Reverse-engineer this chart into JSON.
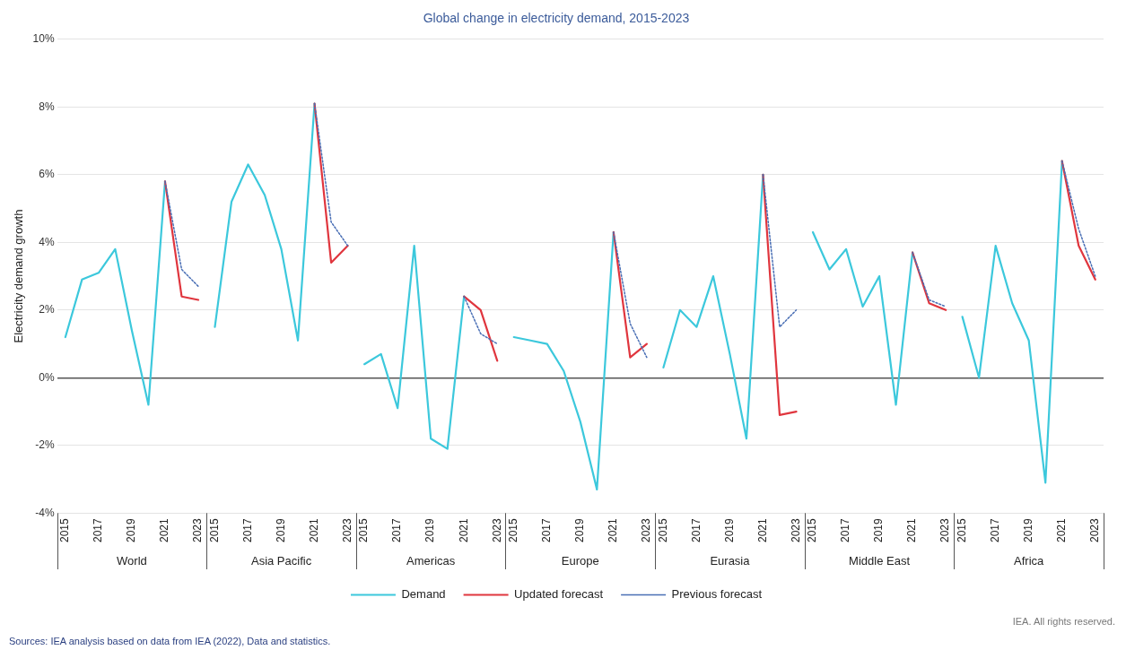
{
  "chart_data": {
    "type": "line",
    "title": "Global change in electricity demand, 2015-2023",
    "ylabel": "Electricity demand growth",
    "categories": [
      "2015",
      null,
      "2017",
      null,
      "2019",
      null,
      "2021",
      null,
      "2023",
      "2015",
      null,
      "2017",
      null,
      "2019",
      null,
      "2021",
      null,
      "2023",
      "2015",
      null,
      "2017",
      null,
      "2019",
      null,
      "2021",
      null,
      "2023",
      "2015",
      null,
      "2017",
      null,
      "2019",
      null,
      "2021",
      null,
      "2023",
      "2015",
      null,
      "2017",
      null,
      "2019",
      null,
      "2021",
      null,
      "2023",
      "2015",
      null,
      "2017",
      null,
      "2019",
      null,
      "2021",
      null,
      "2023",
      "2015",
      null,
      "2017",
      null,
      "2019",
      null,
      "2021",
      null,
      "2023"
    ],
    "series": [
      {
        "name": "Demand",
        "color": "#3cc8dc",
        "values": [
          1.2,
          2.9,
          3.1,
          3.8,
          1.4,
          -0.8,
          5.8,
          null,
          null,
          1.5,
          5.2,
          6.3,
          5.4,
          3.8,
          1.1,
          8.1,
          null,
          null,
          0.4,
          0.7,
          -0.9,
          3.9,
          -1.8,
          -2.1,
          2.4,
          null,
          null,
          1.2,
          1.1,
          1.0,
          0.2,
          -1.3,
          -3.3,
          4.3,
          null,
          null,
          0.3,
          2.0,
          1.5,
          3.0,
          0.7,
          -1.8,
          6.0,
          null,
          null,
          4.3,
          3.2,
          3.8,
          2.1,
          3.0,
          -0.8,
          3.7,
          null,
          null,
          1.8,
          0.0,
          3.9,
          2.2,
          1.1,
          -3.1,
          6.4,
          null,
          null
        ]
      },
      {
        "name": "Updated forecast",
        "color": "#e0363e",
        "values": [
          null,
          null,
          null,
          null,
          null,
          null,
          5.8,
          2.4,
          2.3,
          null,
          null,
          null,
          null,
          null,
          null,
          8.1,
          3.4,
          3.9,
          null,
          null,
          null,
          null,
          null,
          null,
          2.4,
          2.0,
          0.5,
          null,
          null,
          null,
          null,
          null,
          null,
          4.3,
          0.6,
          1.0,
          null,
          null,
          null,
          null,
          null,
          null,
          6.0,
          -1.1,
          -1.0,
          null,
          null,
          null,
          null,
          null,
          null,
          3.7,
          2.2,
          2.0,
          null,
          null,
          null,
          null,
          null,
          null,
          6.4,
          3.9,
          2.9
        ]
      },
      {
        "name": "Previous forecast",
        "color": "#4a6fb5",
        "line_style": "dotted",
        "values": [
          null,
          null,
          null,
          null,
          null,
          null,
          5.8,
          3.2,
          2.7,
          null,
          null,
          null,
          null,
          null,
          null,
          8.1,
          4.6,
          3.9,
          null,
          null,
          null,
          null,
          null,
          null,
          2.4,
          1.3,
          1.0,
          null,
          null,
          null,
          null,
          null,
          null,
          4.3,
          1.6,
          0.6,
          null,
          null,
          null,
          null,
          null,
          null,
          6.0,
          1.5,
          2.0,
          null,
          null,
          null,
          null,
          null,
          null,
          3.7,
          2.3,
          2.1,
          null,
          null,
          null,
          null,
          null,
          null,
          6.4,
          4.4,
          3.0
        ]
      }
    ],
    "ylim": [
      -4,
      10
    ],
    "yticks": [
      {
        "value": -4,
        "label": "-4%"
      },
      {
        "value": -2,
        "label": "-2%"
      },
      {
        "value": 0,
        "label": "0%"
      },
      {
        "value": 2,
        "label": "2%"
      },
      {
        "value": 4,
        "label": "4%"
      },
      {
        "value": 6,
        "label": "6%"
      },
      {
        "value": 8,
        "label": "8%"
      },
      {
        "value": 10,
        "label": "10%"
      }
    ],
    "grid": "y",
    "legend": "bottom",
    "marker": "none",
    "annotations": [
      "World",
      "Asia Pacific",
      "Americas",
      "Europe",
      "Eurasia",
      "Middle East",
      "Africa",
      "IEA. All rights reserved.",
      "Sources: IEA analysis based on data from IEA (2022), Data and statistics."
    ]
  }
}
